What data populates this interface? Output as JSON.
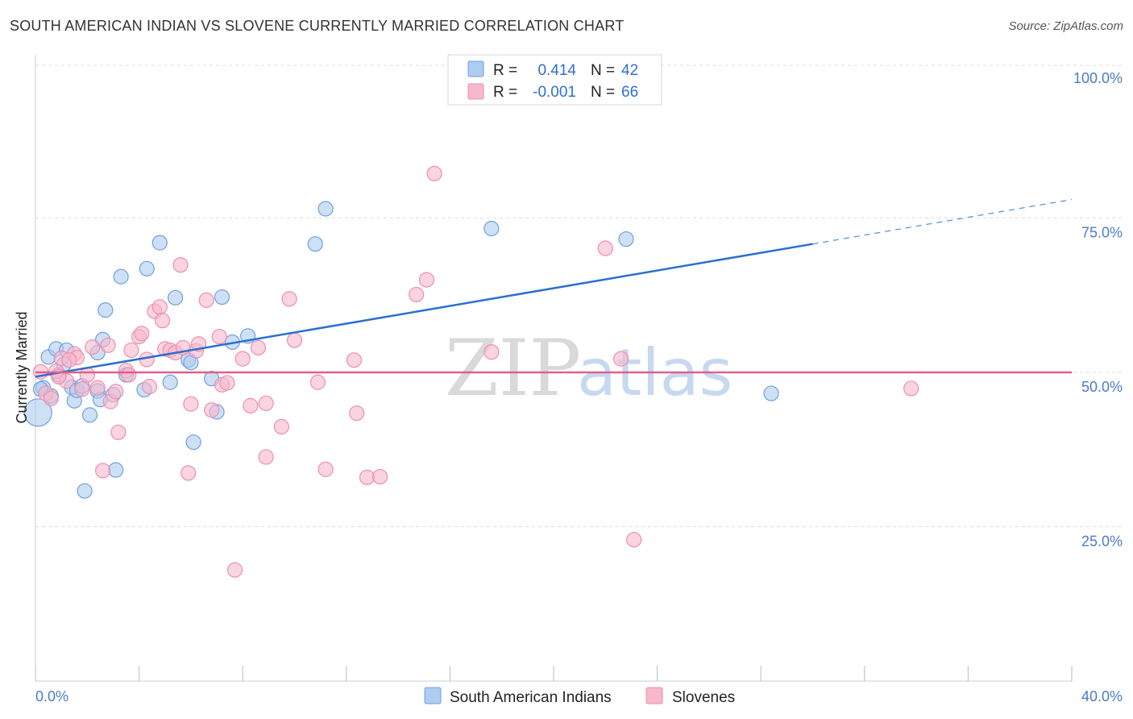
{
  "title": "SOUTH AMERICAN INDIAN VS SLOVENE CURRENTLY MARRIED CORRELATION CHART",
  "source": "Source: ZipAtlas.com",
  "watermark": {
    "zip": "ZIP",
    "atlas": "atlas"
  },
  "legend": {
    "rows": [
      {
        "r_label": "R =",
        "r_value": " 0.414",
        "n_label": "N =",
        "n_value": "42",
        "color": "#aecbf0"
      },
      {
        "r_label": "R =",
        "r_value": "-0.001",
        "n_label": "N =",
        "n_value": "66",
        "color": "#f7b8cb"
      }
    ]
  },
  "chart_data": {
    "type": "scatter",
    "title": "SOUTH AMERICAN INDIAN VS SLOVENE CURRENTLY MARRIED CORRELATION CHART",
    "xlabel": "",
    "ylabel": "Currently Married",
    "xlim": [
      0,
      40
    ],
    "ylim": [
      0,
      105
    ],
    "x_tick_labels": [
      "0.0%",
      "40.0%"
    ],
    "y_ticks": [
      {
        "value": 100,
        "label": "100.0%"
      },
      {
        "value": 75,
        "label": "75.0%"
      },
      {
        "value": 50,
        "label": "50.0%"
      },
      {
        "value": 25,
        "label": "25.0%"
      }
    ],
    "grid": true,
    "legend_position": "bottom",
    "series": [
      {
        "name": "South American Indians",
        "color": "#6fa0de",
        "fill": "#aecbf0",
        "trend": {
          "x0": 0,
          "y0": 49.3,
          "x1": 30.0,
          "y1": 70.8,
          "dash_to_x": 40,
          "dash_to_y": 78.0,
          "color": "#2a6fd0"
        },
        "points": [
          [
            0.1,
            43.5
          ],
          [
            0.3,
            47.5
          ],
          [
            0.5,
            52.5
          ],
          [
            0.6,
            46.2
          ],
          [
            0.8,
            53.8
          ],
          [
            0.9,
            49.6
          ],
          [
            1.1,
            51.3
          ],
          [
            1.2,
            53.6
          ],
          [
            1.4,
            47.6
          ],
          [
            1.5,
            45.4
          ],
          [
            1.6,
            47.1
          ],
          [
            1.8,
            47.8
          ],
          [
            2.1,
            43.1
          ],
          [
            2.4,
            47.0
          ],
          [
            2.5,
            45.6
          ],
          [
            2.6,
            55.3
          ],
          [
            2.7,
            60.1
          ],
          [
            3.0,
            46.4
          ],
          [
            3.3,
            65.5
          ],
          [
            3.5,
            49.6
          ],
          [
            4.2,
            47.2
          ],
          [
            4.3,
            66.8
          ],
          [
            4.8,
            71.0
          ],
          [
            5.2,
            48.4
          ],
          [
            5.4,
            62.1
          ],
          [
            5.9,
            52.0
          ],
          [
            6.1,
            38.7
          ],
          [
            6.8,
            49.0
          ],
          [
            7.0,
            43.6
          ],
          [
            7.2,
            62.2
          ],
          [
            7.6,
            54.9
          ],
          [
            8.2,
            55.9
          ],
          [
            10.8,
            70.8
          ],
          [
            11.2,
            76.5
          ],
          [
            3.1,
            34.2
          ],
          [
            1.9,
            30.8
          ],
          [
            17.6,
            73.3
          ],
          [
            22.8,
            71.6
          ],
          [
            28.4,
            46.6
          ],
          [
            0.2,
            47.3
          ],
          [
            2.4,
            53.2
          ],
          [
            6.0,
            51.6
          ]
        ]
      },
      {
        "name": "Slovenes",
        "color": "#ec8fb0",
        "fill": "#f7b8cb",
        "trend": {
          "x0": 0,
          "y0": 50.0,
          "x1": 40,
          "y1": 50.0,
          "color": "#e0608c"
        },
        "points": [
          [
            0.2,
            50.1
          ],
          [
            0.4,
            46.6
          ],
          [
            0.6,
            45.8
          ],
          [
            0.8,
            50.2
          ],
          [
            1.0,
            52.3
          ],
          [
            1.2,
            48.6
          ],
          [
            1.5,
            53.0
          ],
          [
            1.6,
            52.4
          ],
          [
            1.8,
            47.3
          ],
          [
            2.0,
            49.6
          ],
          [
            2.2,
            54.1
          ],
          [
            2.4,
            47.5
          ],
          [
            2.6,
            34.1
          ],
          [
            2.8,
            54.4
          ],
          [
            2.9,
            45.3
          ],
          [
            3.1,
            46.9
          ],
          [
            3.2,
            40.3
          ],
          [
            3.5,
            50.3
          ],
          [
            3.6,
            49.6
          ],
          [
            3.7,
            53.6
          ],
          [
            4.0,
            55.8
          ],
          [
            4.1,
            56.3
          ],
          [
            4.3,
            52.1
          ],
          [
            4.4,
            47.7
          ],
          [
            4.6,
            59.9
          ],
          [
            4.8,
            60.6
          ],
          [
            4.9,
            58.4
          ],
          [
            5.0,
            53.8
          ],
          [
            5.2,
            53.6
          ],
          [
            5.4,
            53.2
          ],
          [
            5.6,
            67.4
          ],
          [
            5.7,
            54.0
          ],
          [
            5.9,
            33.7
          ],
          [
            6.0,
            44.9
          ],
          [
            6.2,
            53.5
          ],
          [
            6.3,
            54.6
          ],
          [
            6.6,
            61.7
          ],
          [
            6.8,
            43.9
          ],
          [
            7.1,
            55.8
          ],
          [
            7.2,
            48.0
          ],
          [
            7.4,
            48.3
          ],
          [
            7.7,
            18.0
          ],
          [
            8.0,
            52.2
          ],
          [
            8.3,
            44.6
          ],
          [
            8.6,
            54.0
          ],
          [
            8.9,
            45.0
          ],
          [
            8.9,
            36.3
          ],
          [
            9.5,
            41.2
          ],
          [
            9.8,
            61.9
          ],
          [
            10.0,
            55.2
          ],
          [
            10.9,
            48.4
          ],
          [
            11.2,
            34.3
          ],
          [
            12.3,
            52.0
          ],
          [
            12.4,
            43.4
          ],
          [
            12.8,
            33.0
          ],
          [
            13.3,
            33.1
          ],
          [
            14.7,
            62.6
          ],
          [
            15.1,
            65.0
          ],
          [
            15.4,
            82.2
          ],
          [
            17.6,
            53.3
          ],
          [
            22.0,
            70.1
          ],
          [
            22.6,
            52.2
          ],
          [
            23.1,
            22.9
          ],
          [
            33.8,
            47.4
          ],
          [
            1.3,
            52.0
          ],
          [
            0.9,
            49.3
          ]
        ]
      }
    ]
  }
}
